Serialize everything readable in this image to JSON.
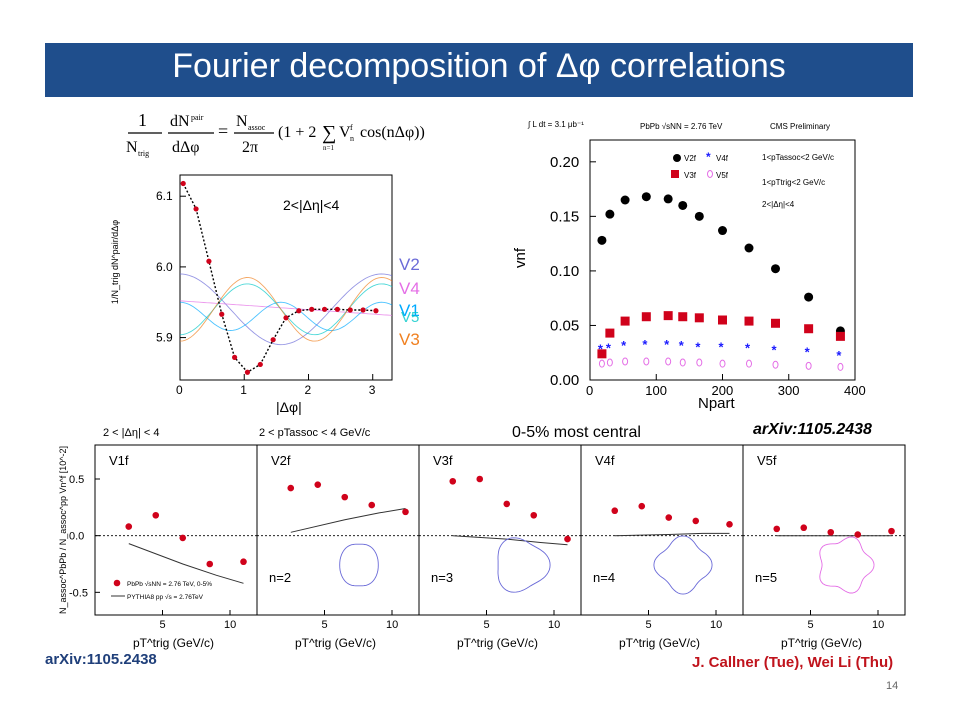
{
  "slide": {
    "title": "Fourier decomposition of Δφ correlations",
    "arxiv_left": "arXiv:1105.2438",
    "arxiv_right": "arXiv:1105.2438",
    "authors": "J. Callner (Tue), Wei Li (Thu)",
    "page_number": "14",
    "centrality": "0-5% most central",
    "bottom_cut1": "2 < |Δη| < 4",
    "bottom_cut2": "2 < pTassoc < 4 GeV/c"
  },
  "colors": {
    "title_bar": "#1f4e8c",
    "data_red": "#d0021b",
    "data_black": "#000000",
    "data_blue": "#1a1aff",
    "data_magenta": "#e46ee6",
    "v2": "#6b6bd8",
    "v4": "#e46ee6",
    "v1": "#00aaff",
    "v5": "#00c8c8",
    "v3": "#f08020",
    "authors": "#c0131c"
  },
  "chart_data": [
    {
      "type": "line",
      "formula_text": "1/N_trig dN^pair/dΔφ = N_assoc/2π (1 + 2 Σ_{n=1} V_n^f cos(nΔφ))",
      "annotation": "2<|Δη|<4",
      "xlabel": "|Δφ|",
      "ylabel": "1/N_trig dN^pair/dΔφ",
      "xlim": [
        0,
        3.3
      ],
      "ylim": [
        5.84,
        6.13
      ],
      "xticks": [
        0,
        1,
        2,
        3
      ],
      "yticks": [
        5.9,
        6.0,
        6.1
      ],
      "legend": [
        "V2",
        "V4",
        "V1",
        "V5",
        "V3"
      ],
      "series": [
        {
          "name": "data",
          "x": [
            0.05,
            0.25,
            0.45,
            0.65,
            0.85,
            1.05,
            1.25,
            1.45,
            1.65,
            1.85,
            2.05,
            2.25,
            2.45,
            2.65,
            2.85,
            3.05
          ],
          "y": [
            6.118,
            6.082,
            6.008,
            5.933,
            5.872,
            5.851,
            5.862,
            5.897,
            5.928,
            5.938,
            5.94,
            5.94,
            5.94,
            5.939,
            5.939,
            5.938
          ]
        }
      ]
    },
    {
      "type": "scatter",
      "header_left": "∫ L dt = 3.1 μb⁻¹",
      "header_mid": "PbPb √sNN = 2.76 TeV",
      "header_right": "CMS Preliminary",
      "cuts": [
        "1<pTassoc<2 GeV/c",
        "1<pTtrig<2 GeV/c",
        "2<|Δη|<4"
      ],
      "legend": [
        "V2f",
        "V4f",
        "V3f",
        "V5f"
      ],
      "xlabel": "Npart",
      "ylabel": "vnf",
      "xlim": [
        0,
        400
      ],
      "ylim": [
        0,
        0.22
      ],
      "xticks": [
        0,
        100,
        200,
        300,
        400
      ],
      "yticks": [
        0.0,
        0.05,
        0.1,
        0.15,
        0.2
      ],
      "x": [
        18,
        30,
        53,
        85,
        118,
        140,
        165,
        200,
        240,
        280,
        330,
        378
      ],
      "series": [
        {
          "name": "V2f",
          "values": [
            0.128,
            0.152,
            0.165,
            0.168,
            0.166,
            0.16,
            0.15,
            0.137,
            0.121,
            0.102,
            0.076,
            0.045
          ]
        },
        {
          "name": "V3f",
          "values": [
            0.024,
            0.043,
            0.054,
            0.058,
            0.059,
            0.058,
            0.057,
            0.055,
            0.054,
            0.052,
            0.047,
            0.04
          ]
        },
        {
          "name": "V4f",
          "values": [
            0.028,
            0.029,
            0.031,
            0.032,
            0.032,
            0.031,
            0.03,
            0.03,
            0.029,
            0.027,
            0.025,
            0.022
          ]
        },
        {
          "name": "V5f",
          "values": [
            0.015,
            0.016,
            0.017,
            0.017,
            0.017,
            0.016,
            0.016,
            0.015,
            0.015,
            0.014,
            0.013,
            0.012
          ]
        }
      ]
    },
    {
      "type": "scatter",
      "ylabel": "N_assoc^PbPb / N_assoc^pp  Vn^f [10^-2]",
      "xlabel": "pT^trig (GeV/c)",
      "xticks": [
        5,
        10
      ],
      "yticks": [
        -0.5,
        0.0,
        0.5
      ],
      "ylim": [
        -0.7,
        0.8
      ],
      "legend": [
        "PbPb √sNN = 2.76 TeV, 0-5%",
        "PYTHIA8 pp √s = 2.76TeV"
      ],
      "panels": [
        {
          "label": "V1f",
          "n_label": "",
          "x": [
            2.5,
            4.5,
            6.5,
            8.5,
            11
          ],
          "values": [
            0.08,
            0.18,
            -0.02,
            -0.25,
            -0.23
          ],
          "pythia": [
            [
              2.5,
              -0.07
            ],
            [
              6.5,
              -0.25
            ],
            [
              9,
              -0.35
            ],
            [
              11,
              -0.42
            ]
          ]
        },
        {
          "label": "V2f",
          "n_label": "n=2",
          "x": [
            2.5,
            4.5,
            6.5,
            8.5,
            11
          ],
          "values": [
            0.42,
            0.45,
            0.34,
            0.27,
            0.21
          ],
          "pythia": [
            [
              2.5,
              0.03
            ],
            [
              6.5,
              0.14
            ],
            [
              9,
              0.2
            ],
            [
              11,
              0.24
            ]
          ]
        },
        {
          "label": "V3f",
          "n_label": "n=3",
          "x": [
            2.5,
            4.5,
            6.5,
            8.5,
            11
          ],
          "values": [
            0.48,
            0.5,
            0.28,
            0.18,
            -0.03
          ],
          "pythia": [
            [
              2.5,
              0.0
            ],
            [
              6.5,
              -0.03
            ],
            [
              9,
              -0.06
            ],
            [
              11,
              -0.08
            ]
          ]
        },
        {
          "label": "V4f",
          "n_label": "n=4",
          "x": [
            2.5,
            4.5,
            6.5,
            8.5,
            11
          ],
          "values": [
            0.22,
            0.26,
            0.16,
            0.13,
            0.1
          ],
          "pythia": [
            [
              2.5,
              0.0
            ],
            [
              6.5,
              0.01
            ],
            [
              9,
              0.02
            ],
            [
              11,
              0.02
            ]
          ]
        },
        {
          "label": "V5f",
          "n_label": "n=5",
          "x": [
            2.5,
            4.5,
            6.5,
            8.5,
            11
          ],
          "values": [
            0.06,
            0.07,
            0.03,
            0.01,
            0.04
          ],
          "pythia": [
            [
              2.5,
              0.0
            ],
            [
              6.5,
              0.0
            ],
            [
              9,
              0.0
            ],
            [
              11,
              0.0
            ]
          ]
        }
      ]
    }
  ]
}
